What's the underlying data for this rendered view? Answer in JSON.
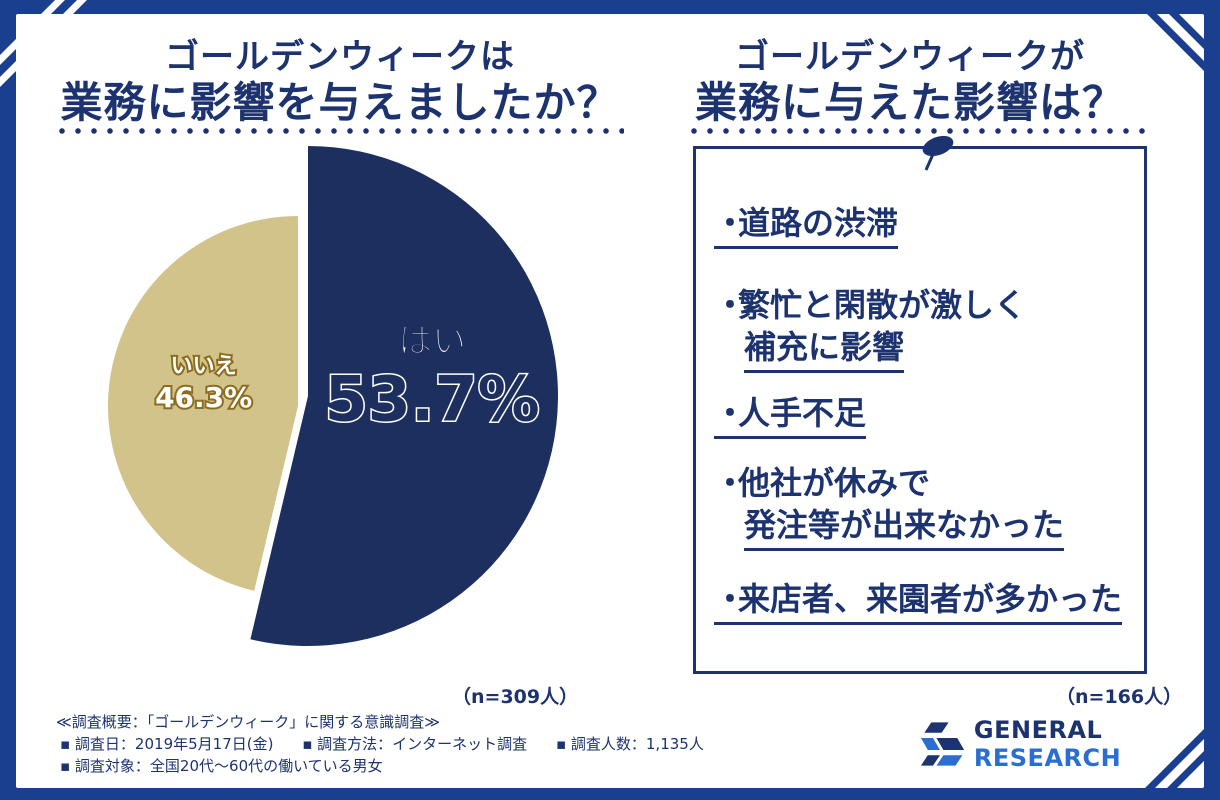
{
  "left_heading": {
    "line1": "ゴールデンウィークは",
    "line2": "業務に影響を与えましたか？"
  },
  "right_heading": {
    "line1": "ゴールデンウィークが",
    "line2": "業務に与えた影響は？"
  },
  "chart_data": {
    "type": "pie",
    "title": "ゴールデンウィークは業務に影響を与えましたか？",
    "labels": [
      "はい",
      "いいえ"
    ],
    "values": [
      53.7,
      46.3
    ],
    "value_texts": [
      "53.7%",
      "46.3%"
    ],
    "colors": [
      "#1d2f5e",
      "#d2c38a"
    ],
    "sample": "（n=309人）"
  },
  "impacts": {
    "bullet": "・",
    "items": [
      {
        "lines": [
          "道路の渋滞"
        ]
      },
      {
        "lines": [
          "繁忙と閑散が激しく",
          "補充に影響"
        ]
      },
      {
        "lines": [
          "人手不足"
        ]
      },
      {
        "lines": [
          "他社が休みで",
          "発注等が出来なかった"
        ]
      },
      {
        "lines": [
          "来店者、来園者が多かった"
        ]
      }
    ],
    "sample": "（n=166人）"
  },
  "footer": {
    "summary": "≪調査概要：「ゴールデンウィーク」に関する意識調査≫",
    "date": "▪ 調査日：2019年5月17日(金)",
    "method": "▪ 調査方法：インターネット調査",
    "count": "▪ 調査人数：1,135人",
    "target": "▪ 調査対象：全国20代〜60代の働いている男女"
  },
  "logo": {
    "word1": "GENERAL",
    "word2": "RESEARCH"
  }
}
